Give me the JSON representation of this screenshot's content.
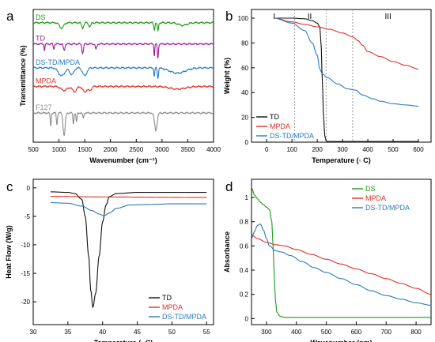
{
  "chart_data": [
    {
      "id": "a",
      "panel_label": "a",
      "type": "line",
      "xlabel": "Wavenumber (cm⁻¹)",
      "ylabel": "Transmittance (%)",
      "xlim": [
        500,
        4000
      ],
      "xticks": [
        500,
        1000,
        1500,
        2000,
        2500,
        3000,
        3500,
        4000
      ],
      "y_ticks_shown": false,
      "series": [
        {
          "name": "DS",
          "color": "#1a9a1a",
          "baseline": 0.9,
          "dips": [
            [
              1050,
              0.04,
              40
            ],
            [
              1460,
              0.04,
              20
            ],
            [
              1600,
              0.03,
              20
            ],
            [
              2850,
              0.05,
              12
            ],
            [
              2920,
              0.06,
              12
            ],
            [
              3400,
              0.02,
              80
            ]
          ]
        },
        {
          "name": "TD",
          "color": "#9a1a9a",
          "baseline": 0.74,
          "dips": [
            [
              720,
              0.05,
              8
            ],
            [
              900,
              0.04,
              10
            ],
            [
              1100,
              0.05,
              15
            ],
            [
              1460,
              0.07,
              15
            ],
            [
              1720,
              0.04,
              15
            ],
            [
              2850,
              0.09,
              8
            ],
            [
              2920,
              0.11,
              10
            ]
          ]
        },
        {
          "name": "DS-TD/MPDA",
          "color": "#2a7bbf",
          "baseline": 0.56,
          "dips": [
            [
              1050,
              0.06,
              60
            ],
            [
              1250,
              0.05,
              40
            ],
            [
              1500,
              0.06,
              40
            ],
            [
              2850,
              0.07,
              8
            ],
            [
              2920,
              0.08,
              10
            ],
            [
              3300,
              0.04,
              150
            ]
          ]
        },
        {
          "name": "MPDA",
          "color": "#e0302a",
          "baseline": 0.42,
          "dips": [
            [
              1100,
              0.03,
              60
            ],
            [
              1300,
              0.04,
              40
            ],
            [
              1500,
              0.04,
              40
            ],
            [
              1600,
              0.03,
              30
            ],
            [
              3300,
              0.02,
              150
            ]
          ]
        },
        {
          "name": "F127",
          "color": "#8c8c8c",
          "baseline": 0.22,
          "dips": [
            [
              840,
              0.1,
              10
            ],
            [
              960,
              0.09,
              10
            ],
            [
              1100,
              0.17,
              20
            ],
            [
              1280,
              0.08,
              10
            ],
            [
              1340,
              0.07,
              10
            ],
            [
              1470,
              0.04,
              10
            ],
            [
              2880,
              0.13,
              25
            ]
          ]
        }
      ]
    },
    {
      "id": "b",
      "panel_label": "b",
      "type": "line",
      "xlabel": "Temperature (◦ C)",
      "ylabel": "Weight (%)",
      "xlim": [
        -60,
        650
      ],
      "ylim": [
        0,
        107
      ],
      "xticks": [
        0,
        100,
        200,
        300,
        400,
        500,
        600
      ],
      "yticks": [
        0,
        20,
        40,
        60,
        80,
        100
      ],
      "region_labels": [
        "I",
        "II",
        "III"
      ],
      "region_label_x": [
        30,
        170,
        480
      ],
      "region_dividers": [
        110,
        235,
        340
      ],
      "legend": [
        "TD",
        "MPDA",
        "DS-TD/MPDA"
      ],
      "legend_position": "bottom-left",
      "series": [
        {
          "name": "TD",
          "color": "#111111",
          "x": [
            30,
            100,
            150,
            180,
            200,
            210,
            215,
            220,
            225,
            230,
            235,
            240,
            600
          ],
          "y": [
            100,
            100,
            99.5,
            98,
            96,
            93,
            80,
            50,
            20,
            5,
            1,
            0.5,
            0.5
          ]
        },
        {
          "name": "MPDA",
          "color": "#e0302a",
          "x": [
            30,
            100,
            150,
            200,
            250,
            300,
            340,
            360,
            380,
            400,
            450,
            500,
            550,
            600
          ],
          "y": [
            100,
            97,
            95,
            93,
            91,
            88,
            85,
            82,
            78,
            73,
            69,
            65,
            62,
            59
          ]
        },
        {
          "name": "DS-TD/MPDA",
          "color": "#2a7bbf",
          "x": [
            30,
            100,
            150,
            180,
            200,
            210,
            220,
            240,
            280,
            320,
            350,
            380,
            420,
            450,
            500,
            550,
            600
          ],
          "y": [
            100,
            96,
            90,
            80,
            70,
            59,
            55,
            52,
            47,
            43,
            42,
            38,
            35,
            33,
            31,
            30,
            29
          ]
        }
      ]
    },
    {
      "id": "c",
      "panel_label": "c",
      "type": "line",
      "xlabel": "Temperature (◦ C)",
      "ylabel": "Heat Flow (W/g)",
      "xlim": [
        30,
        56
      ],
      "ylim": [
        -24,
        1.5
      ],
      "xticks": [
        30,
        35,
        40,
        45,
        50,
        55
      ],
      "yticks": [
        0,
        -5,
        -10,
        -15,
        -20
      ],
      "legend": [
        "TD",
        "MPDA",
        "DS-TD/MPDA"
      ],
      "legend_position": "bottom-right",
      "series": [
        {
          "name": "TD",
          "color": "#111111",
          "x": [
            32.5,
            35,
            36,
            37,
            37.5,
            38,
            38.3,
            38.6,
            39,
            39.5,
            40,
            40.5,
            41,
            42,
            45,
            55
          ],
          "y": [
            -0.7,
            -0.8,
            -1.0,
            -2.0,
            -5.0,
            -12.0,
            -18.0,
            -21.0,
            -18.5,
            -12.0,
            -6.0,
            -3.0,
            -1.5,
            -1.0,
            -0.8,
            -0.8
          ]
        },
        {
          "name": "MPDA",
          "color": "#e0302a",
          "x": [
            32.5,
            40,
            55
          ],
          "y": [
            -1.5,
            -1.6,
            -1.7
          ]
        },
        {
          "name": "DS-TD/MPDA",
          "color": "#2a7bbf",
          "x": [
            32.5,
            35,
            37,
            38.5,
            39.5,
            40.2,
            41,
            42,
            44,
            47,
            50,
            55
          ],
          "y": [
            -2.6,
            -2.7,
            -3.2,
            -4.0,
            -4.6,
            -4.9,
            -4.4,
            -3.6,
            -3.0,
            -2.9,
            -2.8,
            -2.8
          ]
        }
      ]
    },
    {
      "id": "d",
      "panel_label": "d",
      "type": "line",
      "xlabel": "Wavenumber (nm)",
      "ylabel": "Absorbance",
      "xlim": [
        250,
        850
      ],
      "ylim": [
        -0.05,
        1.15
      ],
      "xticks": [
        300,
        400,
        500,
        600,
        700,
        800
      ],
      "yticks": [
        0.0,
        0.2,
        0.4,
        0.6,
        0.8,
        1.0
      ],
      "legend": [
        "DS",
        "MPDA",
        "DS-TD/MPDA"
      ],
      "legend_position": "top-right",
      "series": [
        {
          "name": "DS",
          "color": "#1a9a1a",
          "x": [
            250,
            260,
            270,
            280,
            290,
            300,
            310,
            318,
            322,
            326,
            330,
            335,
            345,
            360,
            400,
            500,
            850
          ],
          "y": [
            1.08,
            1.02,
            0.99,
            0.96,
            0.94,
            0.92,
            0.9,
            0.8,
            0.6,
            0.35,
            0.15,
            0.05,
            0.02,
            0.01,
            0.01,
            0.01,
            0.01
          ]
        },
        {
          "name": "MPDA",
          "color": "#e0302a",
          "x": [
            250,
            270,
            300,
            330,
            360,
            400,
            450,
            500,
            550,
            600,
            650,
            700,
            750,
            800,
            850
          ],
          "y": [
            0.69,
            0.66,
            0.63,
            0.61,
            0.6,
            0.57,
            0.53,
            0.49,
            0.45,
            0.41,
            0.37,
            0.33,
            0.29,
            0.25,
            0.2
          ]
        },
        {
          "name": "DS-TD/MPDA",
          "color": "#2a7bbf",
          "x": [
            250,
            260,
            270,
            280,
            290,
            300,
            310,
            330,
            350,
            380,
            420,
            460,
            500,
            550,
            600,
            650,
            700,
            750,
            800,
            850
          ],
          "y": [
            0.66,
            0.72,
            0.77,
            0.78,
            0.73,
            0.66,
            0.6,
            0.56,
            0.55,
            0.52,
            0.47,
            0.42,
            0.38,
            0.33,
            0.28,
            0.23,
            0.19,
            0.16,
            0.13,
            0.11
          ]
        }
      ]
    }
  ]
}
